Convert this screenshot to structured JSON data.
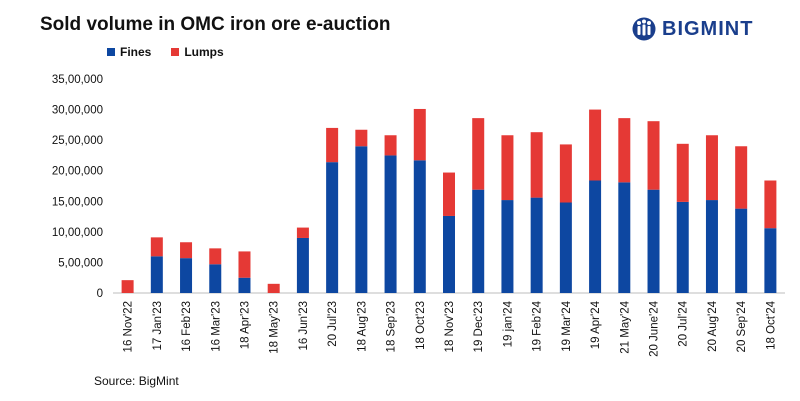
{
  "brand": {
    "name": "BIGMINT",
    "color": "#1a3e8c"
  },
  "source": "Source: BigMint",
  "chart_data": {
    "type": "bar",
    "stacked": true,
    "title": "Sold volume in OMC iron ore e-auction",
    "xlabel": "",
    "ylabel": "",
    "ylim": [
      0,
      3500000
    ],
    "yticks": [
      0,
      500000,
      1000000,
      1500000,
      2000000,
      2500000,
      3000000,
      3500000
    ],
    "ytick_labels": [
      "0",
      "5,00,000",
      "10,00,000",
      "15,00,000",
      "20,00,000",
      "25,00,000",
      "30,00,000",
      "35,00,000"
    ],
    "grid": false,
    "legend_position": "top-left",
    "categories": [
      "16 Nov'22",
      "17 Jan'23",
      "16 Feb'23",
      "16 Mar'23",
      "18 Apr'23",
      "18 May'23",
      "16 Jun'23",
      "20 Jul'23",
      "18 Aug'23",
      "18 Sep'23",
      "18 Oct'23",
      "18 Nov'23",
      "19 Dec'23",
      "19 jan'24",
      "19 Feb'24",
      "19 Mar'24",
      "19 Apr'24",
      "21 May'24",
      "20 June'24",
      "20 Jul'24",
      "20 Aug'24",
      "20 Sep'24",
      "18 Oct'24"
    ],
    "series": [
      {
        "name": "Fines",
        "color": "#0d47a1",
        "values": [
          0,
          600000,
          570000,
          470000,
          250000,
          0,
          900000,
          2140000,
          2400000,
          2250000,
          2170000,
          1260000,
          1690000,
          1520000,
          1560000,
          1480000,
          1840000,
          1810000,
          1690000,
          1490000,
          1520000,
          1380000,
          1060000
        ]
      },
      {
        "name": "Lumps",
        "color": "#e53935",
        "values": [
          210000,
          310000,
          260000,
          260000,
          430000,
          150000,
          170000,
          560000,
          270000,
          330000,
          840000,
          710000,
          1170000,
          1060000,
          1070000,
          950000,
          1160000,
          1050000,
          1120000,
          950000,
          1060000,
          1020000,
          780000
        ]
      }
    ]
  }
}
